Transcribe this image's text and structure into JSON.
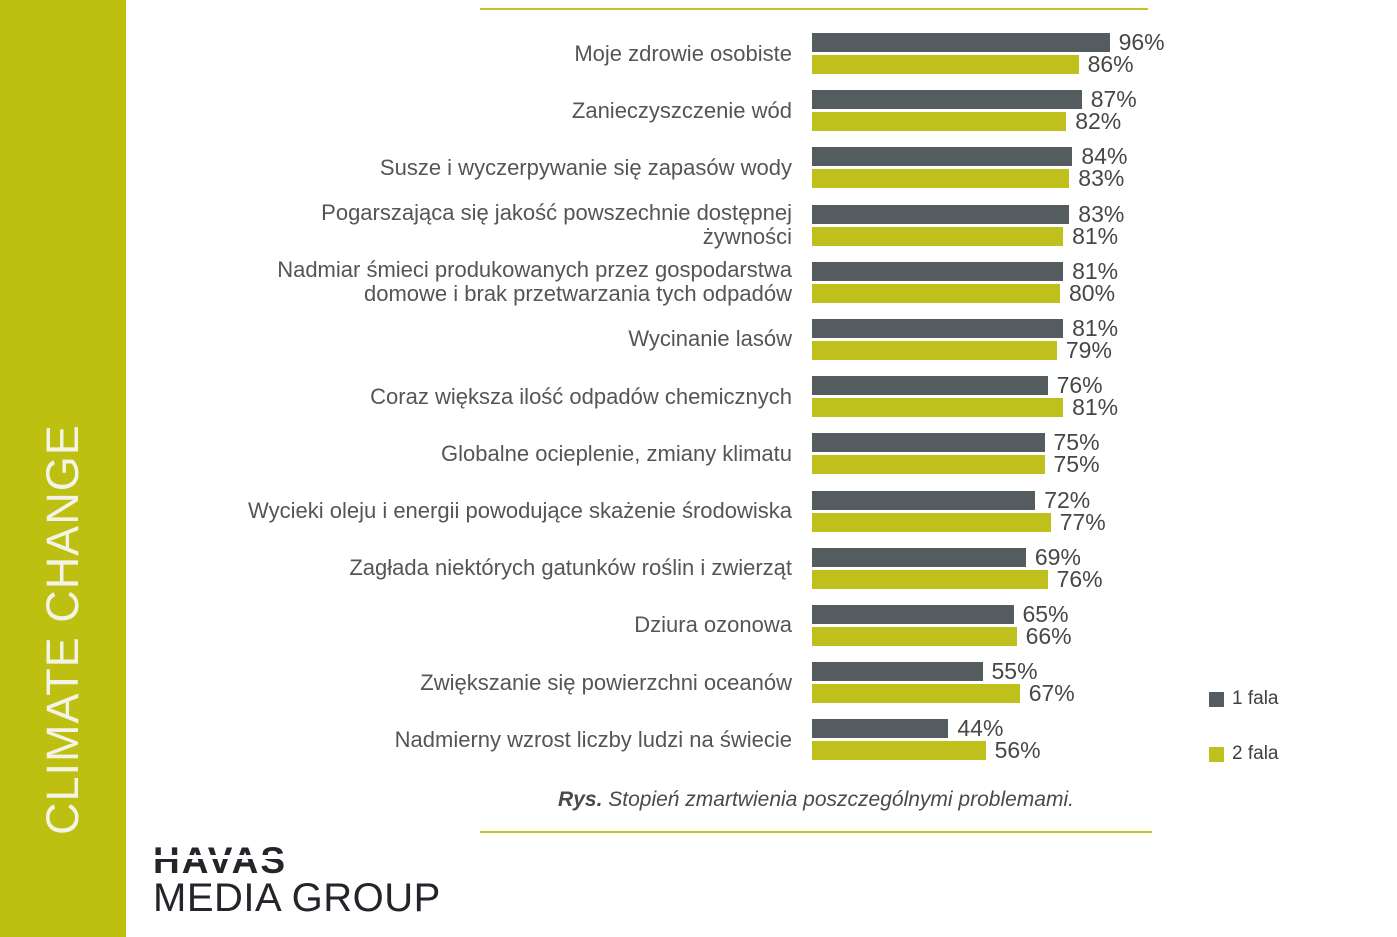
{
  "sidebar": {
    "title": "CLIMATE CHANGE"
  },
  "logo": {
    "line1": "HAVAS",
    "line2": "MEDIA GROUP"
  },
  "caption": {
    "prefix": "Rys.",
    "text": "Stopień zmartwienia poszczególnymi problemami."
  },
  "colors": {
    "accent": "#bdc011",
    "series0": "#545c60",
    "series1": "#bfc01b",
    "rule": "#c3c42c"
  },
  "chart_data": {
    "type": "bar",
    "orientation": "horizontal",
    "title": "",
    "xlabel": "",
    "ylabel": "",
    "xlim": [
      0,
      100
    ],
    "grid": false,
    "legend_position": "right",
    "value_suffix": "%",
    "categories": [
      "Moje zdrowie osobiste",
      "Zanieczyszczenie wód",
      "Susze i wyczerpywanie się zapasów wody",
      "Pogarszająca się jakość  powszechnie dostępnej\nżywności",
      "Nadmiar śmieci produkowanych przez gospodarstwa\ndomowe i brak przetwarzania tych  odpadów",
      "Wycinanie lasów",
      "Coraz większa ilość odpadów chemicznych",
      "Globalne ocieplenie, zmiany klimatu",
      "Wycieki oleju i energii powodujące skażenie środowiska",
      "Zagłada niektórych gatunków roślin i zwierząt",
      "Dziura ozonowa",
      "Zwiększanie się powierzchni oceanów",
      "Nadmierny wzrost liczby ludzi na świecie"
    ],
    "series": [
      {
        "name": "1 fala",
        "color": "#545c60",
        "values": [
          96,
          87,
          84,
          83,
          81,
          81,
          76,
          75,
          72,
          69,
          65,
          55,
          44
        ]
      },
      {
        "name": "2 fala",
        "color": "#bfc01b",
        "values": [
          86,
          82,
          83,
          81,
          80,
          79,
          81,
          75,
          77,
          76,
          66,
          67,
          56
        ]
      }
    ],
    "caption": "Rys. Stopień zmartwienia poszczególnymi problemami."
  }
}
